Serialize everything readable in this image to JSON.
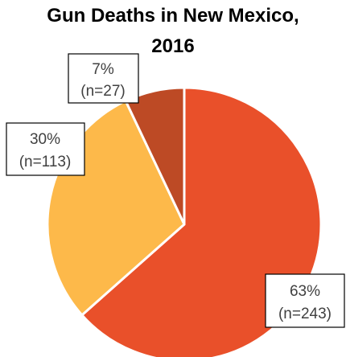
{
  "chart_data": {
    "type": "pie",
    "title_lines": [
      "Gun Deaths in New Mexico,",
      "2016"
    ],
    "slices": [
      {
        "percent_label": "63%",
        "count_label": "(n=243)",
        "value": 243,
        "color": "#E9502A"
      },
      {
        "percent_label": "30%",
        "count_label": "(n=113)",
        "value": 113,
        "color": "#FDB94A"
      },
      {
        "percent_label": "7%",
        "count_label": "(n=27)",
        "value": 27,
        "color": "#BD4A25"
      }
    ]
  }
}
